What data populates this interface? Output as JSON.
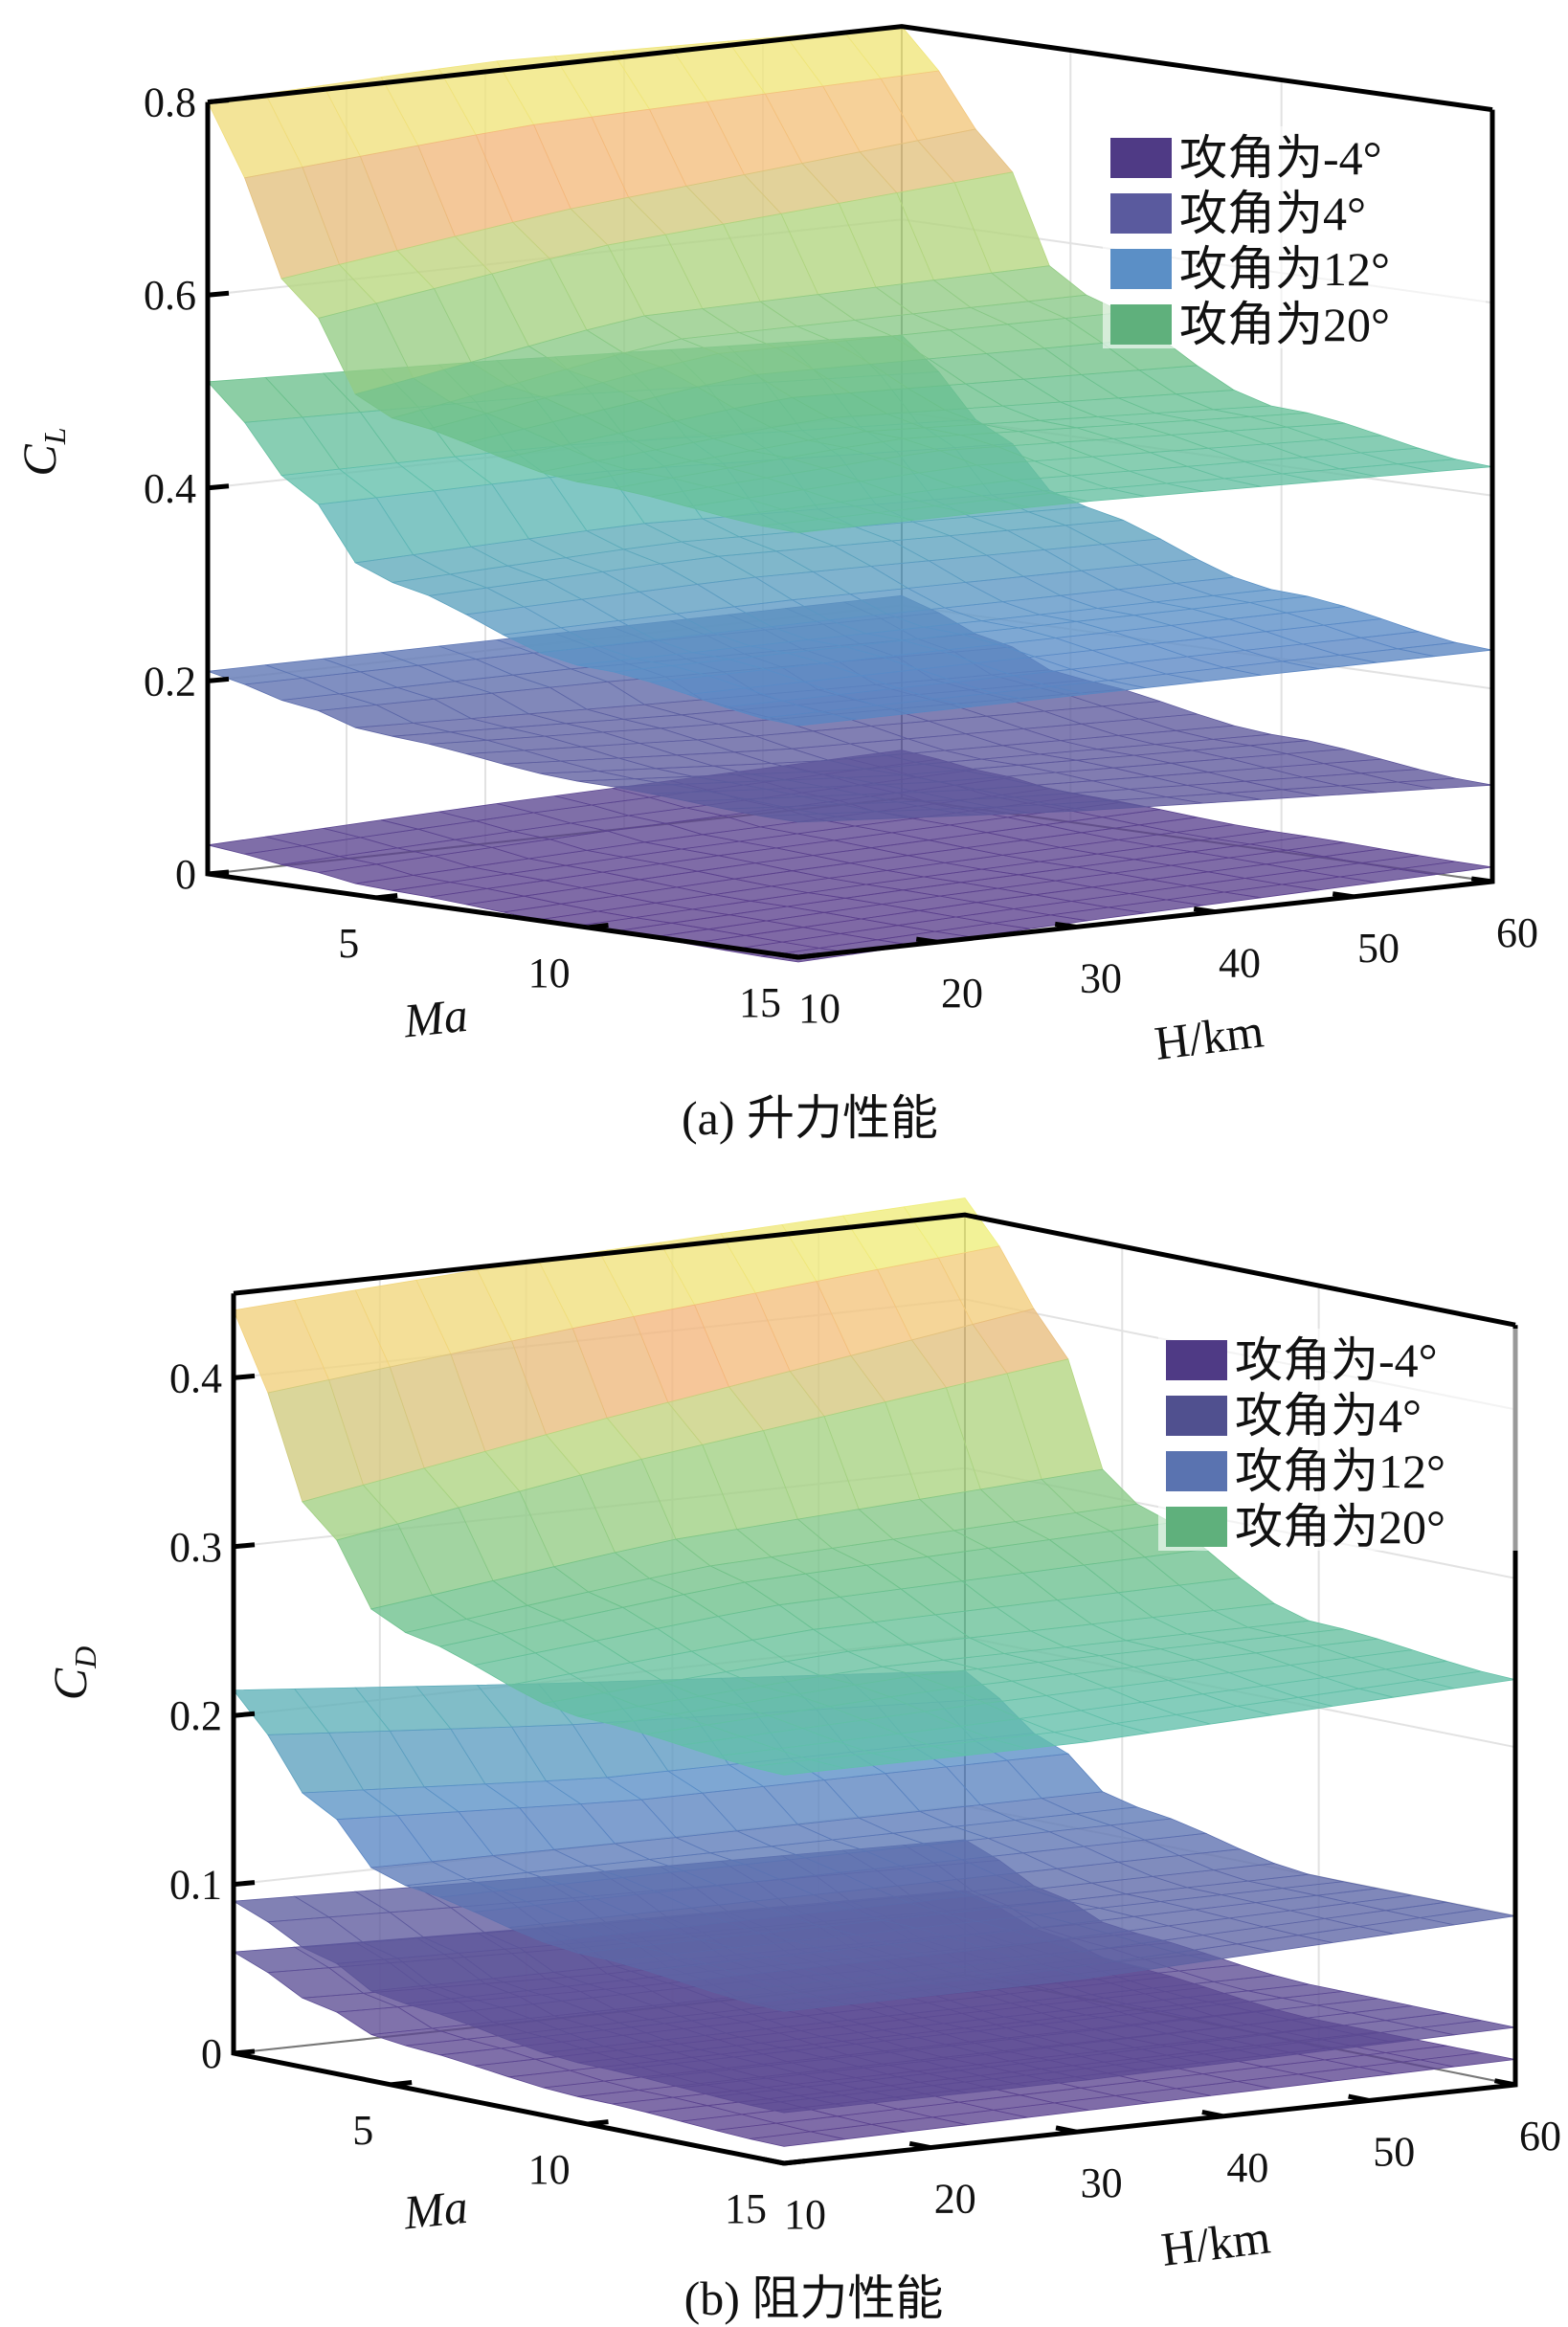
{
  "chart_data": [
    {
      "type": "surface",
      "title": "(a) 升力性能",
      "xlabel": "Ma",
      "ylabel": "H/km",
      "zlabel": {
        "base": "C",
        "sub": "L"
      },
      "xlim": [
        1,
        15
      ],
      "ylim": [
        10,
        60
      ],
      "zlim": [
        0,
        0.8
      ],
      "x_ticks": [
        5,
        10,
        15
      ],
      "y_ticks": [
        10,
        20,
        30,
        40,
        50,
        60
      ],
      "z_ticks": [
        0,
        0.2,
        0.4,
        0.6,
        0.8
      ],
      "grid": true,
      "legend": "top-right",
      "Ma": [
        1,
        3,
        5,
        10,
        15
      ],
      "H": [
        10,
        30,
        60
      ],
      "series": [
        {
          "name": "攻角为-4°",
          "color": "#4f3a85",
          "z": [
            [
              0.03,
              0.04,
              0.05
            ],
            [
              0.02,
              0.03,
              0.04
            ],
            [
              0.01,
              0.02,
              0.03
            ],
            [
              0.0,
              0.01,
              0.02
            ],
            [
              -0.005,
              0.005,
              0.015
            ]
          ]
        },
        {
          "name": "攻角为4°",
          "color": "#5a5a9e",
          "z": [
            [
              0.21,
              0.21,
              0.21
            ],
            [
              0.19,
              0.19,
              0.18
            ],
            [
              0.17,
              0.16,
              0.15
            ],
            [
              0.15,
              0.13,
              0.12
            ],
            [
              0.14,
              0.12,
              0.1
            ]
          ]
        },
        {
          "name": "攻角为12°",
          "color": "#5b8fc6",
          "z": [
            [
              0.51,
              0.5,
              0.48
            ],
            [
              0.42,
              0.42,
              0.4
            ],
            [
              0.33,
              0.34,
              0.33
            ],
            [
              0.27,
              0.27,
              0.27
            ],
            [
              0.24,
              0.24,
              0.24
            ]
          ]
        },
        {
          "name": "攻角为20°",
          "color": "#5fb07c",
          "z": [
            [
              0.8,
              0.81,
              0.8
            ],
            [
              0.62,
              0.66,
              0.7
            ],
            [
              0.5,
              0.55,
              0.55
            ],
            [
              0.46,
              0.48,
              0.46
            ],
            [
              0.44,
              0.44,
              0.43
            ]
          ]
        }
      ]
    },
    {
      "type": "surface",
      "title": "(b) 阻力性能",
      "xlabel": "Ma",
      "ylabel": "H/km",
      "zlabel": {
        "base": "C",
        "sub": "D"
      },
      "xlim": [
        1,
        15
      ],
      "ylim": [
        10,
        60
      ],
      "zlim": [
        0,
        0.45
      ],
      "x_ticks": [
        5,
        10,
        15
      ],
      "y_ticks": [
        10,
        20,
        30,
        40,
        50,
        60
      ],
      "z_ticks": [
        0,
        0.1,
        0.2,
        0.3,
        0.4
      ],
      "grid": true,
      "legend": "top-right",
      "Ma": [
        1,
        3,
        5,
        10,
        15
      ],
      "H": [
        10,
        30,
        60
      ],
      "series": [
        {
          "name": "攻角为-4°",
          "color": "#4f3a85",
          "z": [
            [
              0.06,
              0.055,
              0.05
            ],
            [
              0.04,
              0.035,
              0.035
            ],
            [
              0.025,
              0.025,
              0.025
            ],
            [
              0.015,
              0.015,
              0.015
            ],
            [
              0.01,
              0.012,
              0.015
            ]
          ]
        },
        {
          "name": "攻角为4°",
          "color": "#50508f",
          "z": [
            [
              0.09,
              0.085,
              0.08
            ],
            [
              0.07,
              0.065,
              0.06
            ],
            [
              0.05,
              0.05,
              0.045
            ],
            [
              0.035,
              0.035,
              0.035
            ],
            [
              0.03,
              0.03,
              0.034
            ]
          ]
        },
        {
          "name": "攻角为12°",
          "color": "#5a73b0",
          "z": [
            [
              0.215,
              0.2,
              0.18
            ],
            [
              0.16,
              0.15,
              0.15
            ],
            [
              0.12,
              0.12,
              0.12
            ],
            [
              0.1,
              0.1,
              0.1
            ],
            [
              0.09,
              0.09,
              0.1
            ]
          ]
        },
        {
          "name": "攻角为20°",
          "color": "#5fb07c",
          "z": [
            [
              0.44,
              0.45,
              0.46
            ],
            [
              0.33,
              0.36,
              0.4
            ],
            [
              0.27,
              0.29,
              0.3
            ],
            [
              0.24,
              0.25,
              0.25
            ],
            [
              0.23,
              0.23,
              0.24
            ]
          ]
        }
      ]
    }
  ]
}
